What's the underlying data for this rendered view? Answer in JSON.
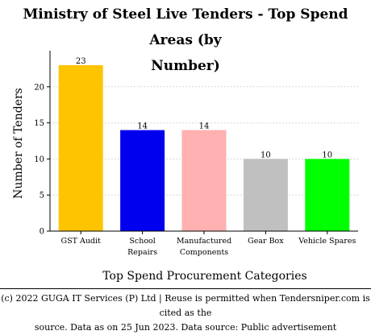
{
  "chart_data": {
    "type": "bar",
    "title_line1": "Ministry of Steel Live Tenders - Top Spend Areas (by",
    "title_line2": "Number)",
    "xlabel": "Top Spend Procurement Categories",
    "ylabel": "Number of Tenders",
    "categories": [
      [
        "GST Audit"
      ],
      [
        "School",
        "Repairs"
      ],
      [
        "Manufactured",
        "Components"
      ],
      [
        "Gear Box"
      ],
      [
        "Vehicle Spares"
      ]
    ],
    "values": [
      23,
      14,
      14,
      10,
      10
    ],
    "colors": [
      "#ffc400",
      "#0000ee",
      "#ffb0b0",
      "#c0c0c0",
      "#00ff00"
    ],
    "ylim": [
      0,
      25
    ],
    "yticks": [
      0,
      5,
      10,
      15,
      20
    ],
    "grid": true
  },
  "footer": {
    "line1": "(c) 2022 GUGA IT Services (P) Ltd | Reuse is permitted when Tendersniper.com is cited as the",
    "line2": "source. Data as on 25 Jun 2023. Data source: Public advertisement"
  }
}
